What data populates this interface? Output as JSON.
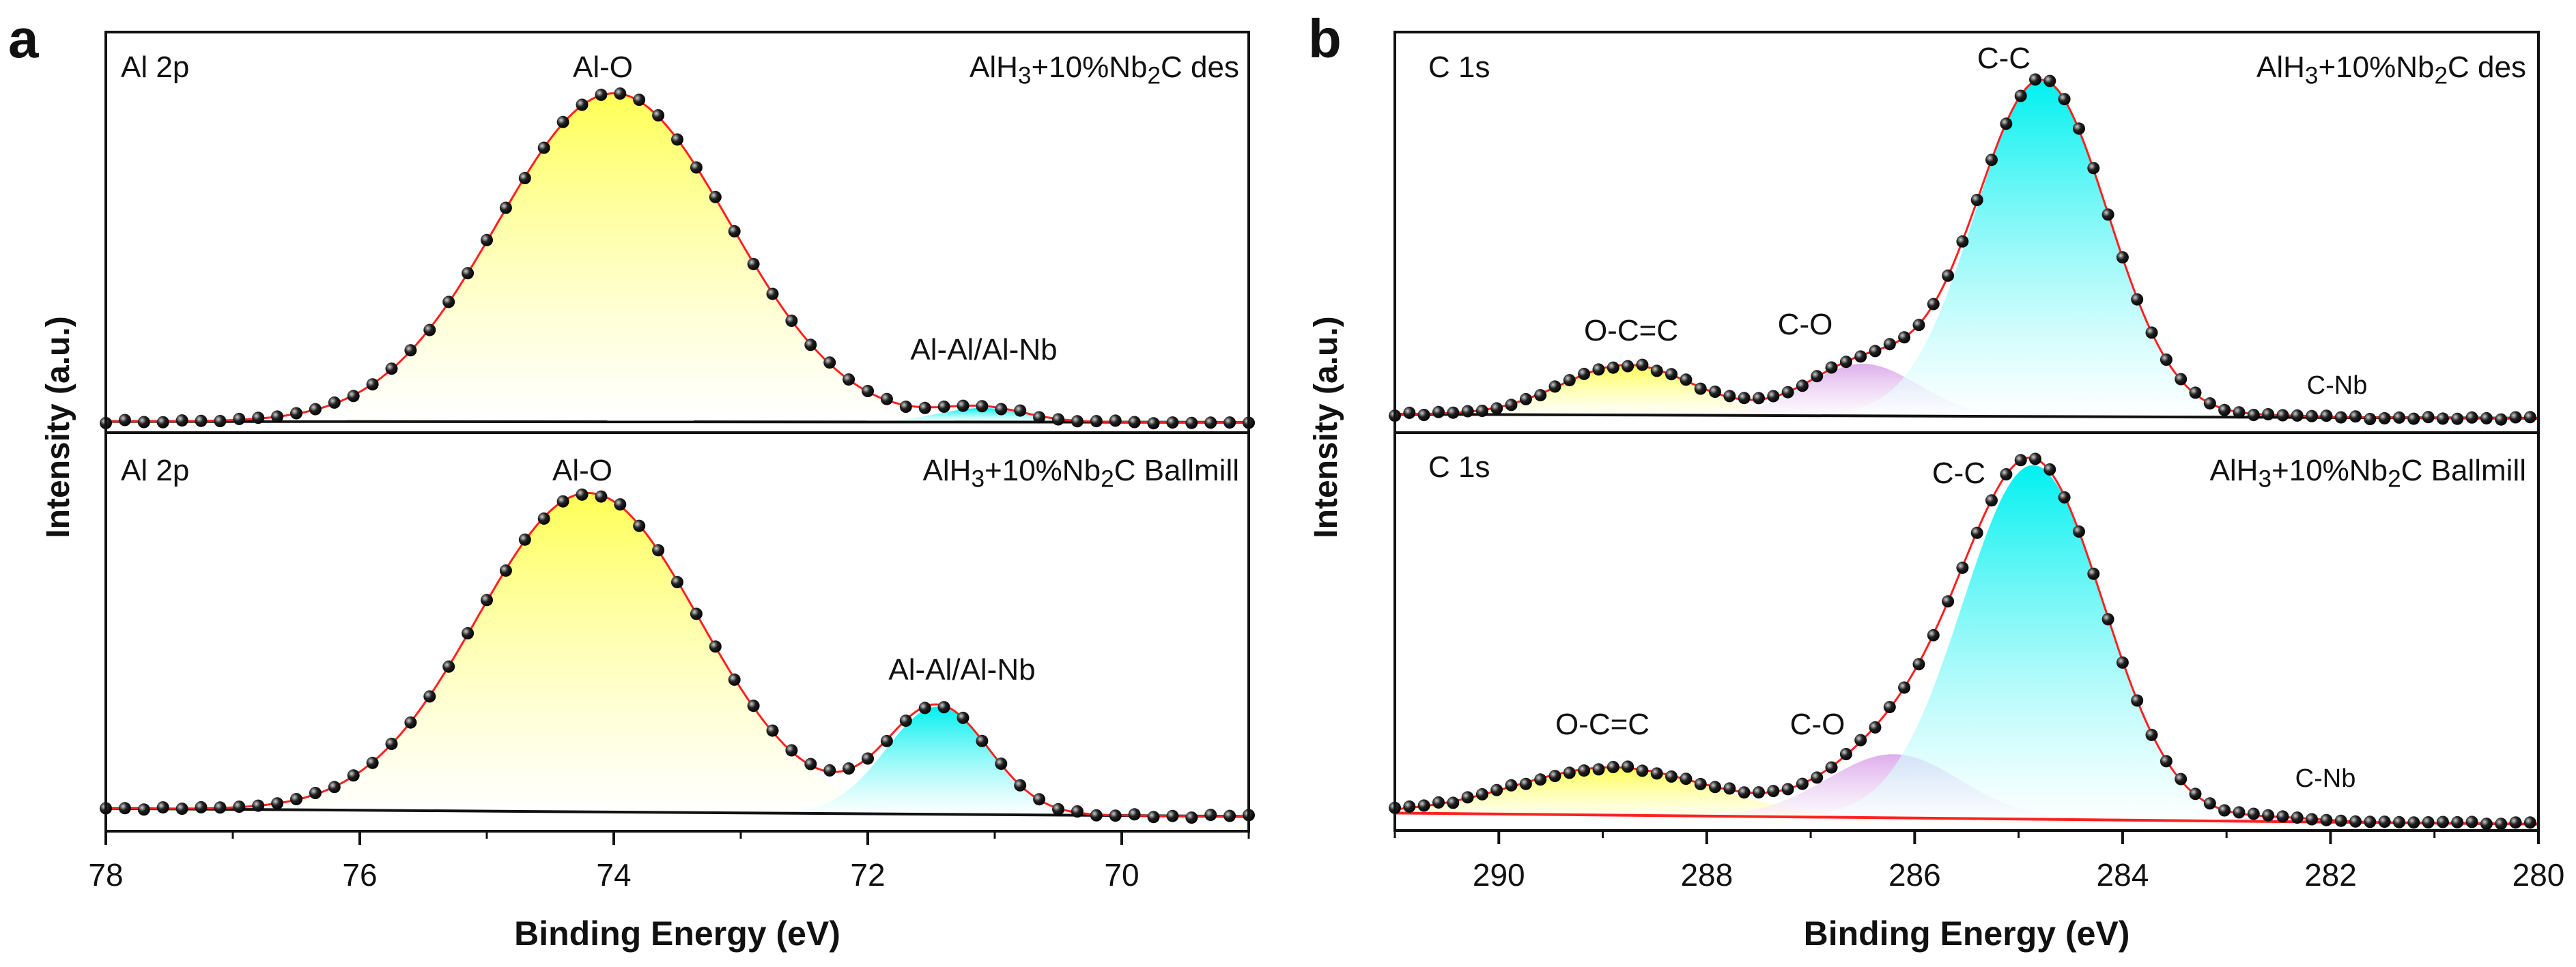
{
  "colors": {
    "fit": "#ff2020",
    "baseline": "#111111",
    "point": "#222222",
    "yellow": "#ffff55",
    "cyan": "#00f0f0",
    "violet": "#d8a0e8",
    "frame": "#111111"
  },
  "chart_data": [
    {
      "panel_label": "a",
      "type": "line",
      "xlabel": "Binding Energy (eV)",
      "ylabel": "Intensity (a.u.)",
      "xlim": [
        78,
        69
      ],
      "xticks": [
        78,
        76,
        74,
        72,
        70
      ],
      "minor_ticks": [
        77,
        75,
        73,
        71,
        69
      ],
      "point_step": 0.15,
      "subplots": [
        {
          "core_level": "Al 2p",
          "sample": "AlH3+10%Nb2C des",
          "baseline": [
            0.028,
            0.026
          ],
          "components": [
            {
              "name": "Al-O",
              "center": 74.0,
              "fwhm": 2.15,
              "amplitude": 0.82,
              "color": "yellow"
            },
            {
              "name": "Al-Al/Al-Nb",
              "center": 71.1,
              "fwhm": 0.8,
              "amplitude": 0.035,
              "color": "cyan"
            }
          ]
        },
        {
          "core_level": "Al 2p",
          "sample": "AlH3+10%Nb2C Ballmill",
          "baseline": [
            0.057,
            0.037
          ],
          "components": [
            {
              "name": "Al-O",
              "center": 74.2,
              "fwhm": 2.06,
              "amplitude": 0.8,
              "color": "yellow"
            },
            {
              "name": "Al-Al/Al-Nb",
              "center": 71.45,
              "fwhm": 0.95,
              "amplitude": 0.27,
              "color": "cyan"
            }
          ]
        }
      ]
    },
    {
      "panel_label": "b",
      "type": "line",
      "xlabel": "Binding Energy (eV)",
      "ylabel": "Intensity (a.u.)",
      "xlim": [
        291,
        280
      ],
      "xticks": [
        290,
        288,
        286,
        284,
        282,
        280
      ],
      "minor_ticks": [
        291,
        289,
        287,
        285,
        283,
        281
      ],
      "point_step": 0.14,
      "subplots": [
        {
          "core_level": "C 1s",
          "sample": "AlH3+10%Nb2C des",
          "baseline": [
            0.046,
            0.036
          ],
          "components": [
            {
              "name": "O-C=C",
              "center": 288.76,
              "fwhm": 1.5,
              "amplitude": 0.125,
              "color": "yellow"
            },
            {
              "name": "C-O",
              "center": 286.5,
              "fwhm": 1.25,
              "amplitude": 0.13,
              "color": "violet"
            },
            {
              "name": "C-C",
              "center": 284.78,
              "fwhm": 1.5,
              "amplitude": 0.84,
              "color": "cyan"
            },
            {
              "name": "C-Nb",
              "center": 282.5,
              "fwhm": 1.0,
              "amplitude": 0.004,
              "color": "violet"
            }
          ]
        },
        {
          "core_level": "C 1s",
          "sample": "AlH3+10%Nb2C Ballmill",
          "baseline": [
            0.044,
            0.016
          ],
          "components": [
            {
              "name": "O-C=C",
              "center": 288.9,
              "fwhm": 2.2,
              "amplitude": 0.12,
              "color": "yellow"
            },
            {
              "name": "C-O",
              "center": 286.2,
              "fwhm": 1.5,
              "amplitude": 0.16,
              "color": "violet"
            },
            {
              "name": "C-C",
              "center": 284.86,
              "fwhm": 1.6,
              "amplitude": 0.89,
              "color": "cyan"
            },
            {
              "name": "C-Nb",
              "center": 282.5,
              "fwhm": 1.0,
              "amplitude": 0.01,
              "color": "violet"
            }
          ]
        }
      ]
    }
  ]
}
